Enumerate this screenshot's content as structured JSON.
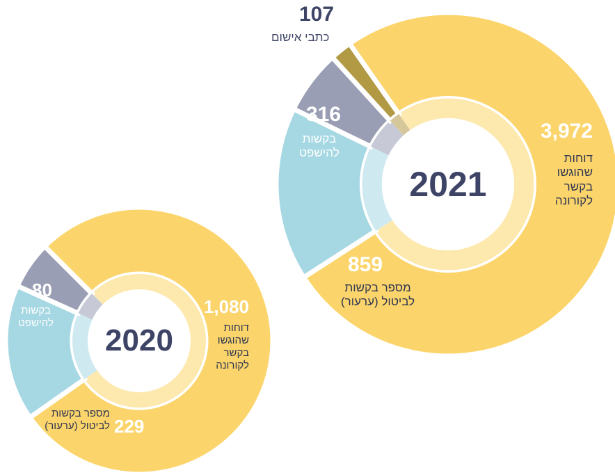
{
  "chart_data": [
    {
      "type": "donut",
      "title": "2021",
      "categories": [
        "דוחות\nשהוגשו\nבקשר\nלקורונה",
        "מספר בקשות\nלביטול (ערעור)",
        "בקשות\nלהישפט",
        "כתבי אישום"
      ],
      "values": [
        3972,
        859,
        316,
        107
      ],
      "value_labels": [
        "3,972",
        "859",
        "316",
        "107"
      ],
      "colors": [
        "#fbd56b",
        "#a6d8e3",
        "#9a9eb4",
        "#b29a45"
      ]
    },
    {
      "type": "donut",
      "title": "2020",
      "categories": [
        "דוחות\nשהוגשו\nבקשר\nלקורונה",
        "מספר בקשות\nלביטול (ערעור)",
        "בקשות\nלהישפט"
      ],
      "values": [
        1080,
        229,
        80
      ],
      "value_labels": [
        "1,080",
        "229",
        "80"
      ],
      "colors": [
        "#fbd56b",
        "#a6d8e3",
        "#9a9eb4"
      ]
    }
  ]
}
